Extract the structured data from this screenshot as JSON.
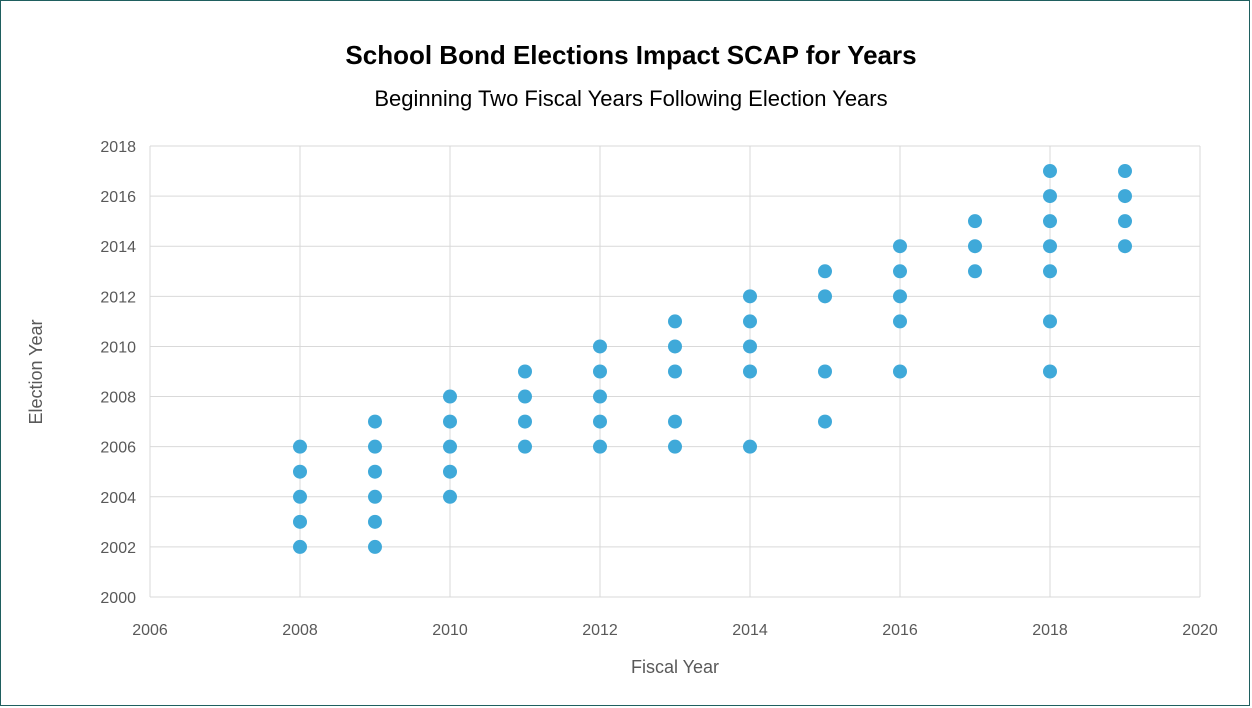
{
  "chart_data": {
    "type": "scatter",
    "title": "School Bond Elections Impact SCAP for Years",
    "subtitle": "Beginning Two Fiscal Years Following Election Years",
    "xlabel": "Fiscal Year",
    "ylabel": "Election Year",
    "xlim": [
      2006,
      2020
    ],
    "ylim": [
      2000,
      2018
    ],
    "x_ticks": [
      "2006",
      "2008",
      "2010",
      "2012",
      "2014",
      "2016",
      "2018",
      "2020"
    ],
    "y_ticks": [
      "2000",
      "2002",
      "2004",
      "2006",
      "2008",
      "2010",
      "2012",
      "2014",
      "2016",
      "2018"
    ],
    "grid": true,
    "legend": "none",
    "marker_color": "#3fa9d9",
    "grid_color": "#d9d9d9",
    "points": [
      [
        2008,
        2002
      ],
      [
        2008,
        2003
      ],
      [
        2008,
        2004
      ],
      [
        2008,
        2005
      ],
      [
        2008,
        2006
      ],
      [
        2009,
        2002
      ],
      [
        2009,
        2003
      ],
      [
        2009,
        2004
      ],
      [
        2009,
        2005
      ],
      [
        2009,
        2006
      ],
      [
        2009,
        2007
      ],
      [
        2010,
        2004
      ],
      [
        2010,
        2005
      ],
      [
        2010,
        2006
      ],
      [
        2010,
        2007
      ],
      [
        2010,
        2008
      ],
      [
        2011,
        2006
      ],
      [
        2011,
        2007
      ],
      [
        2011,
        2008
      ],
      [
        2011,
        2009
      ],
      [
        2012,
        2006
      ],
      [
        2012,
        2007
      ],
      [
        2012,
        2008
      ],
      [
        2012,
        2009
      ],
      [
        2012,
        2010
      ],
      [
        2013,
        2006
      ],
      [
        2013,
        2007
      ],
      [
        2013,
        2009
      ],
      [
        2013,
        2010
      ],
      [
        2013,
        2011
      ],
      [
        2014,
        2006
      ],
      [
        2014,
        2009
      ],
      [
        2014,
        2010
      ],
      [
        2014,
        2011
      ],
      [
        2014,
        2012
      ],
      [
        2015,
        2007
      ],
      [
        2015,
        2009
      ],
      [
        2015,
        2012
      ],
      [
        2015,
        2013
      ],
      [
        2016,
        2009
      ],
      [
        2016,
        2011
      ],
      [
        2016,
        2012
      ],
      [
        2016,
        2013
      ],
      [
        2016,
        2014
      ],
      [
        2017,
        2013
      ],
      [
        2017,
        2014
      ],
      [
        2017,
        2015
      ],
      [
        2018,
        2009
      ],
      [
        2018,
        2011
      ],
      [
        2018,
        2013
      ],
      [
        2018,
        2014
      ],
      [
        2018,
        2015
      ],
      [
        2018,
        2016
      ],
      [
        2018,
        2017
      ],
      [
        2019,
        2014
      ],
      [
        2019,
        2015
      ],
      [
        2019,
        2016
      ],
      [
        2019,
        2017
      ]
    ]
  }
}
